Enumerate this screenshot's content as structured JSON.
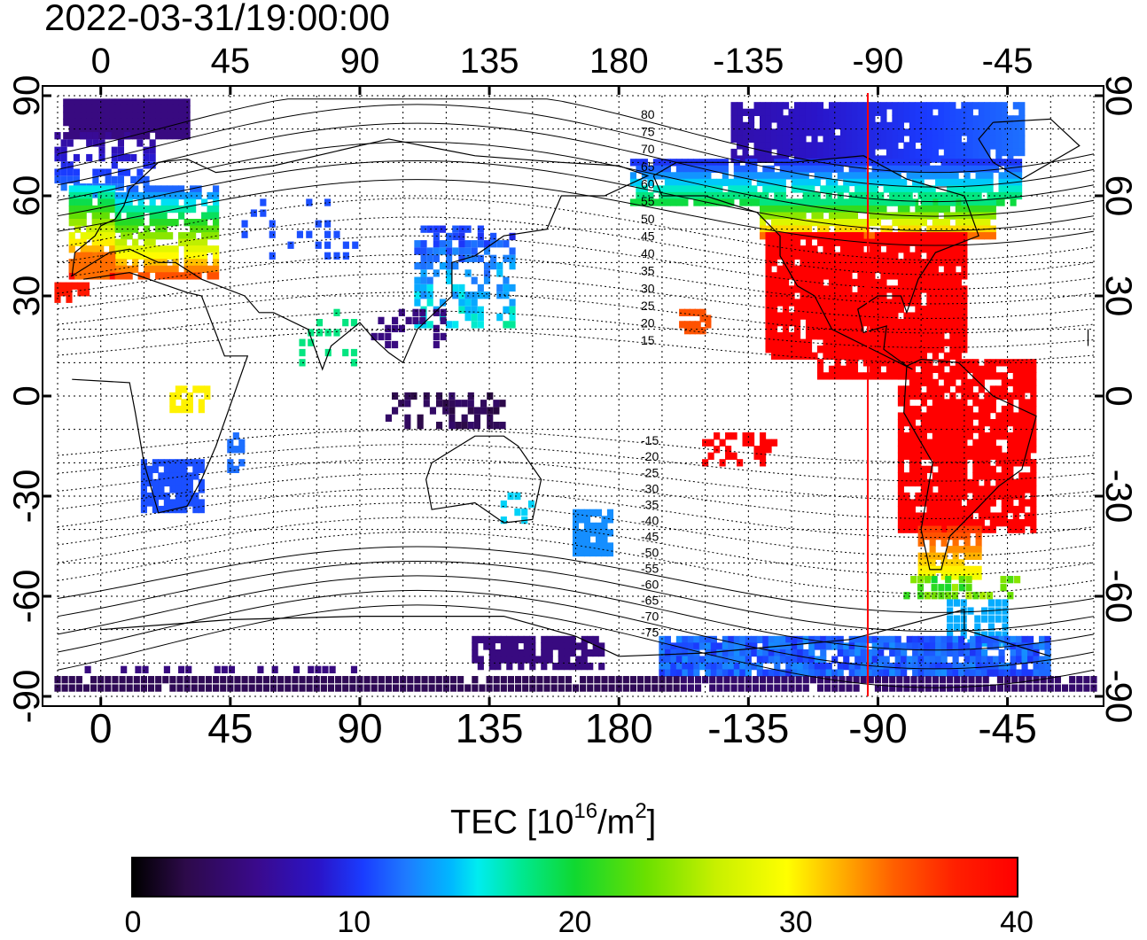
{
  "title": "2022-03-31/19:00:00",
  "axes": {
    "lon_ticks": [
      "0",
      "45",
      "90",
      "135",
      "180",
      "-135",
      "-90",
      "-45"
    ],
    "lat_ticks": [
      "90",
      "60",
      "30",
      "0",
      "-30",
      "-60",
      "-90"
    ]
  },
  "contour_labels": [
    "80",
    "75",
    "70",
    "65",
    "60",
    "55",
    "50",
    "45",
    "40",
    "35",
    "30",
    "25",
    "20",
    "15",
    "-15",
    "-20",
    "-25",
    "-30",
    "-35",
    "-40",
    "-45",
    "-50",
    "-55",
    "-60",
    "-65",
    "-70",
    "-75"
  ],
  "colorbar": {
    "title_main": "TEC  [10",
    "title_exp": "16",
    "title_mid": "/m",
    "title_exp2": "2",
    "title_end": "]",
    "tick_labels": [
      "0",
      "10",
      "20",
      "30",
      "40"
    ],
    "min": 0,
    "max": 40
  },
  "map_data": {
    "type": "heatmap",
    "projection": "equirectangular",
    "lon_center_range": [
      -15,
      345
    ],
    "lat_range": [
      -90,
      90
    ],
    "terminator_longitude": -105,
    "terminator_color": "#ff0000",
    "regions": [
      {
        "name": "north-america-high",
        "value": 40
      },
      {
        "name": "south-america-high",
        "value": 40
      },
      {
        "name": "hawaii-region",
        "value": 36
      },
      {
        "name": "europe-mid",
        "value": 22
      },
      {
        "name": "asia-east",
        "value": 12
      },
      {
        "name": "antarctic-band",
        "value": 5
      },
      {
        "name": "australia-southeast",
        "value": 13
      },
      {
        "name": "southern-africa",
        "value": 11
      }
    ]
  }
}
